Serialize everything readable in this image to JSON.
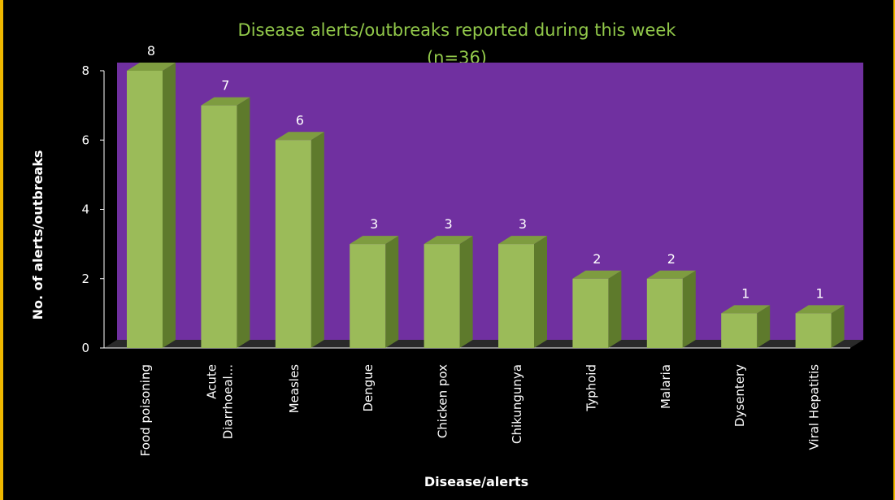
{
  "chart_data": {
    "type": "bar",
    "title": "Disease alerts/outbreaks reported during this week",
    "subtitle": "(n=36)",
    "xlabel": "Disease/alerts",
    "ylabel": "No. of alerts/outbreaks",
    "categories": [
      "Food poisoning",
      "Acute Diarrhoeal...",
      "Measles",
      "Dengue",
      "Chicken pox",
      "Chikungunya",
      "Typhoid",
      "Malaria",
      "Dysentery",
      "Viral Hepatitis"
    ],
    "category_label_lines": [
      [
        "Food poisoning"
      ],
      [
        "Acute",
        "Diarrhoeal..."
      ],
      [
        "Measles"
      ],
      [
        "Dengue"
      ],
      [
        "Chicken pox"
      ],
      [
        "Chikungunya"
      ],
      [
        "Typhoid"
      ],
      [
        "Malaria"
      ],
      [
        "Dysentery"
      ],
      [
        "Viral Hepatitis"
      ]
    ],
    "values": [
      8,
      7,
      6,
      3,
      3,
      3,
      2,
      2,
      1,
      1
    ],
    "data_labels": [
      "8",
      "7",
      "6",
      "3",
      "3",
      "3",
      "2",
      "2",
      "1",
      "1"
    ],
    "ylim": [
      0,
      8
    ],
    "yticks": [
      "0",
      "2",
      "4",
      "6",
      "8"
    ],
    "grid": false,
    "legend": "none",
    "style": "3d-column",
    "colors": {
      "bar_front": "#9bbb59",
      "bar_side": "#5e7a2c",
      "bar_top": "#7e9c40",
      "plot_back": "#7030a0",
      "floor": "#2a2a2a",
      "title": "#92c94a",
      "background": "#000000",
      "frame": "#f0b800",
      "text": "#ffffff"
    }
  }
}
